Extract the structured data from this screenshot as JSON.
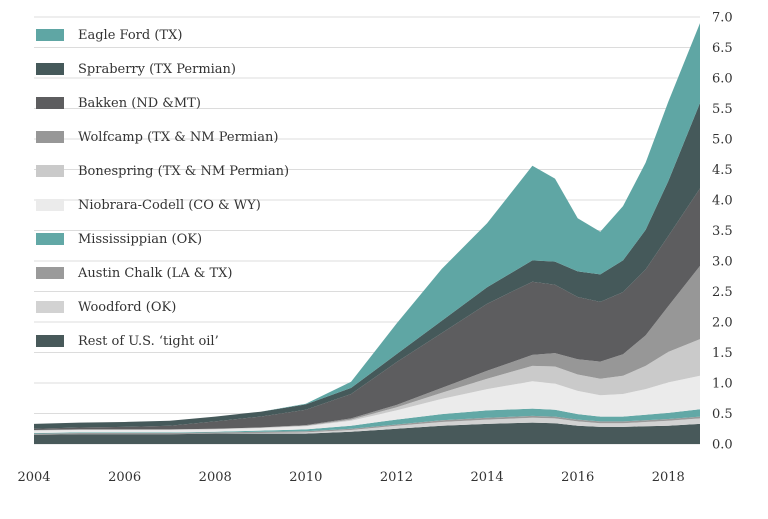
{
  "chart_data": {
    "type": "area",
    "stacked": true,
    "title": "",
    "xlabel": "",
    "ylabel": "",
    "xlim": [
      2004,
      2018.7
    ],
    "ylim": [
      0,
      7
    ],
    "x_ticks": [
      "2004",
      "2006",
      "2008",
      "2010",
      "2012",
      "2014",
      "2016",
      "2018"
    ],
    "y_ticks": [
      "7.0",
      "6.5",
      "6.0",
      "5.5",
      "5.0",
      "4.5",
      "4.0",
      "3.5",
      "3.0",
      "2.5",
      "2.0",
      "1.5",
      "1.0",
      "0.5",
      "0.0"
    ],
    "y_axis_side": "right",
    "grid": "horizontal",
    "legend_position": "top-left",
    "x": [
      2004,
      2005,
      2006,
      2007,
      2008,
      2009,
      2010,
      2011,
      2012,
      2013,
      2014,
      2015,
      2015.5,
      2016,
      2016.5,
      2017,
      2017.5,
      2018,
      2018.7
    ],
    "series": [
      {
        "name": "Rest of U.S. ‘tight oil’",
        "color": "#48595a",
        "values": [
          0.15,
          0.16,
          0.16,
          0.16,
          0.17,
          0.17,
          0.17,
          0.2,
          0.25,
          0.3,
          0.33,
          0.35,
          0.34,
          0.3,
          0.28,
          0.28,
          0.29,
          0.3,
          0.33
        ]
      },
      {
        "name": "Woodford (OK)",
        "color": "#d2d2d2",
        "values": [
          0,
          0,
          0,
          0,
          0,
          0.01,
          0.02,
          0.03,
          0.05,
          0.06,
          0.07,
          0.08,
          0.08,
          0.07,
          0.06,
          0.06,
          0.07,
          0.08,
          0.09
        ]
      },
      {
        "name": "Austin Chalk (LA & TX)",
        "color": "#9a9a9a",
        "values": [
          0.02,
          0.02,
          0.02,
          0.02,
          0.02,
          0.02,
          0.02,
          0.02,
          0.02,
          0.03,
          0.03,
          0.03,
          0.03,
          0.03,
          0.03,
          0.03,
          0.03,
          0.03,
          0.03
        ]
      },
      {
        "name": "Mississippian (OK)",
        "color": "#62a8a6",
        "values": [
          0.01,
          0.01,
          0.01,
          0.01,
          0.01,
          0.02,
          0.03,
          0.05,
          0.08,
          0.1,
          0.12,
          0.12,
          0.11,
          0.09,
          0.08,
          0.08,
          0.09,
          0.1,
          0.12
        ]
      },
      {
        "name": "Niobrara-Codell (CO & WY)",
        "color": "#ebebeb",
        "values": [
          0.04,
          0.04,
          0.04,
          0.04,
          0.04,
          0.04,
          0.05,
          0.08,
          0.15,
          0.25,
          0.35,
          0.45,
          0.43,
          0.38,
          0.35,
          0.37,
          0.42,
          0.5,
          0.55
        ]
      },
      {
        "name": "Bonespring (TX & NM Permian)",
        "color": "#cacaca",
        "values": [
          0.01,
          0.01,
          0.01,
          0.01,
          0.01,
          0.01,
          0.01,
          0.02,
          0.05,
          0.1,
          0.17,
          0.25,
          0.28,
          0.27,
          0.27,
          0.3,
          0.38,
          0.5,
          0.6
        ]
      },
      {
        "name": "Wolfcamp (TX & NM Permian)",
        "color": "#979797",
        "values": [
          0,
          0,
          0,
          0,
          0,
          0,
          0.01,
          0.02,
          0.04,
          0.08,
          0.13,
          0.18,
          0.22,
          0.25,
          0.28,
          0.35,
          0.5,
          0.75,
          1.2
        ]
      },
      {
        "name": "Bakken (ND &MT)",
        "color": "#5d5d5f",
        "values": [
          0.02,
          0.03,
          0.04,
          0.06,
          0.12,
          0.18,
          0.25,
          0.4,
          0.7,
          0.9,
          1.1,
          1.2,
          1.12,
          1.02,
          0.98,
          1.02,
          1.08,
          1.15,
          1.27
        ]
      },
      {
        "name": "Spraberry (TX Permian)",
        "color": "#45595a",
        "values": [
          0.08,
          0.08,
          0.08,
          0.08,
          0.08,
          0.08,
          0.09,
          0.1,
          0.13,
          0.2,
          0.27,
          0.35,
          0.38,
          0.42,
          0.45,
          0.52,
          0.65,
          0.9,
          1.4
        ]
      },
      {
        "name": "Eagle Ford (TX)",
        "color": "#5fa6a4",
        "values": [
          0,
          0,
          0,
          0,
          0,
          0,
          0.01,
          0.1,
          0.5,
          0.85,
          1.05,
          1.55,
          1.36,
          0.87,
          0.7,
          0.89,
          1.1,
          1.3,
          1.31
        ]
      }
    ]
  }
}
